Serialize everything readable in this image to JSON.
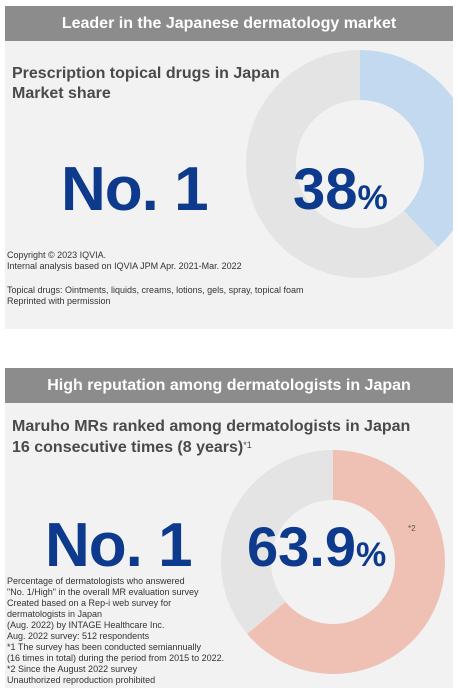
{
  "market": {
    "banner": "Leader in the Japanese dermatology market",
    "heading_line1": "Prescription topical drugs in Japan",
    "heading_line2": "Market share",
    "rank": "No. 1",
    "share_value": "38",
    "share_unit": "%",
    "share_fraction": 0.38,
    "colors": {
      "filled": "#c2d9f0",
      "rest": "#e4e4e4",
      "number": "#0d3a8c"
    },
    "notes": [
      "Copyright © 2023 IQVIA.",
      "Internal analysis based on IQVIA JPM Apr. 2021-Mar. 2022",
      "",
      "Topical drugs: Ointments, liquids, creams, lotions, gels, spray, topical foam",
      "Reprinted with permission"
    ]
  },
  "reputation": {
    "banner": "High reputation among dermatologists in Japan",
    "heading_line1": "Maruho MRs ranked among dermatologists in Japan",
    "heading_line2": "16 consecutive times (8 years)",
    "heading_sup": "*1",
    "rank": "No. 1",
    "share_value": "63.9",
    "share_unit": "%",
    "share_sup": "*2",
    "share_fraction": 0.639,
    "colors": {
      "filled": "#efc1b5",
      "rest": "#e4e4e4",
      "number": "#0d3a8c"
    },
    "notes": [
      "Percentage of dermatologists who answered",
      "\"No. 1/High\" in the overall MR evaluation survey",
      "Created based on a Rep-i web survey for",
      "dermatologists in Japan",
      "(Aug. 2022) by INTAGE Healthcare Inc.",
      "Aug. 2022 survey: 512 respondents",
      "*1  The survey has been conducted semiannually",
      "     (16 times in total) during the period from 2015 to 2022.",
      "*2 Since the August 2022 survey",
      "Unauthorized reproduction prohibited"
    ]
  }
}
